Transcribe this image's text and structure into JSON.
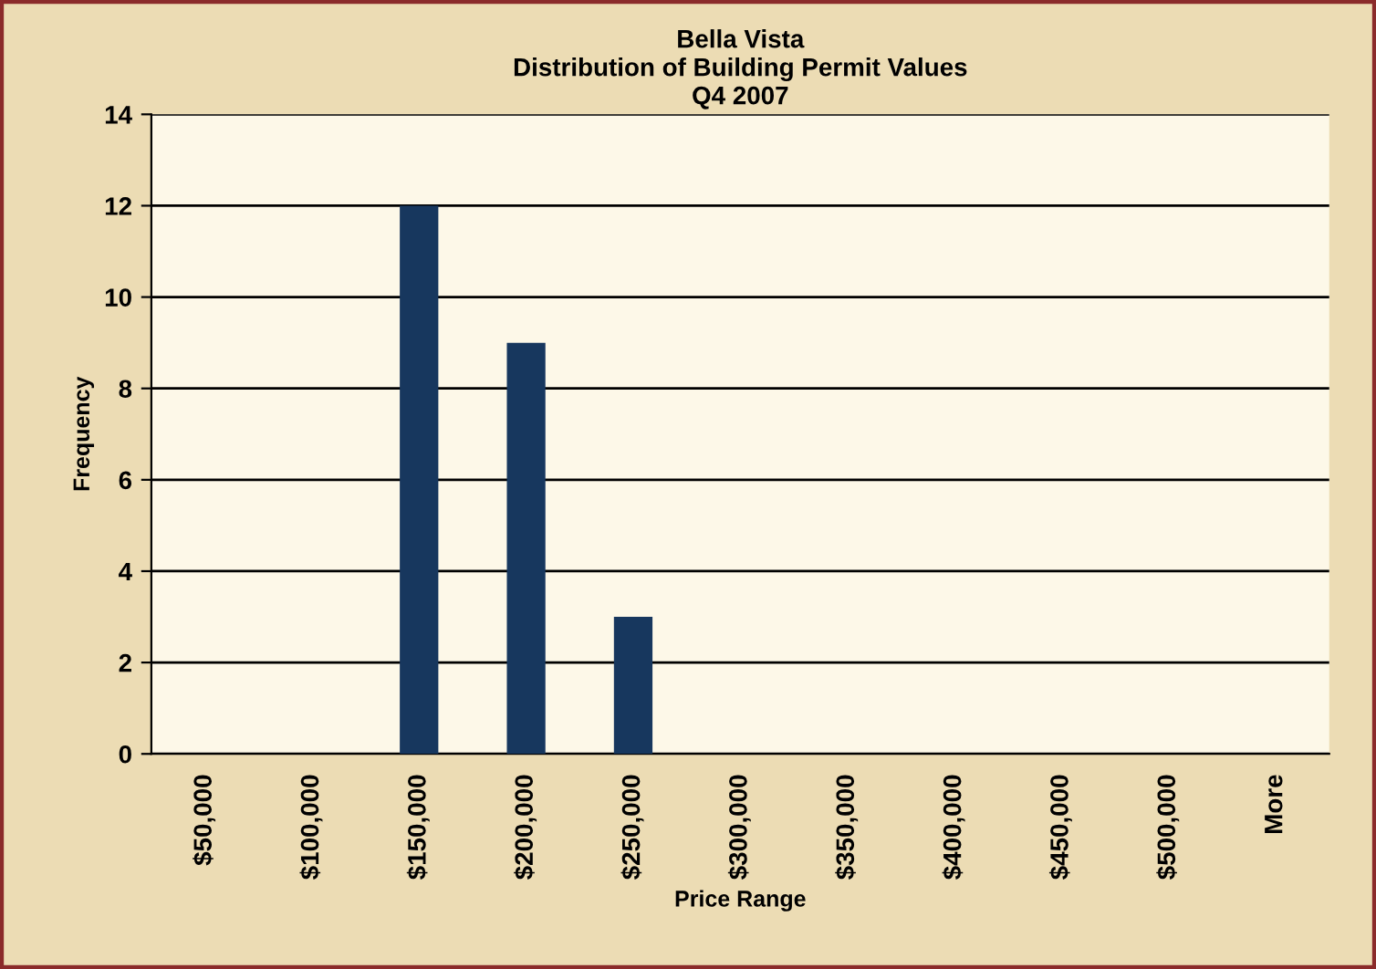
{
  "chart_data": {
    "type": "bar",
    "title": "Bella Vista\nDistribution of Building Permit Values\nQ4 2007",
    "xlabel": "Price Range",
    "ylabel": "Frequency",
    "categories": [
      "$50,000",
      "$100,000",
      "$150,000",
      "$200,000",
      "$250,000",
      "$300,000",
      "$350,000",
      "$400,000",
      "$450,000",
      "$500,000",
      "More"
    ],
    "series": [
      {
        "color": "#17375e",
        "values": [
          0,
          0,
          12,
          9,
          3,
          0,
          0,
          0,
          0,
          0,
          0
        ]
      }
    ],
    "ylim": [
      0,
      14
    ],
    "yticks": [
      0,
      2,
      4,
      6,
      8,
      10,
      12,
      14
    ],
    "grid": "y",
    "legend": false
  }
}
